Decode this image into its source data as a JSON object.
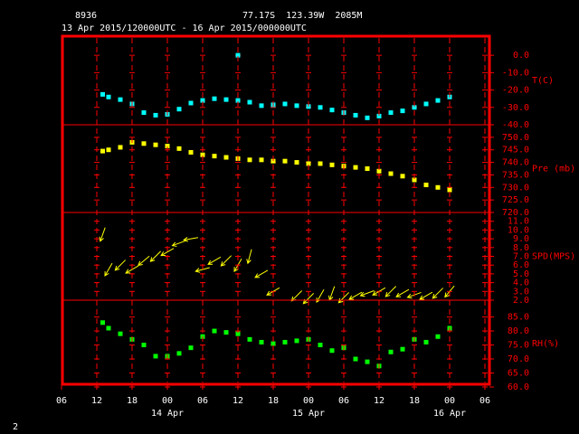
{
  "header": {
    "station": "8936",
    "location": "77.17S  123.39W  2085M",
    "period": "13 Apr 2015/120000UTC - 16 Apr 2015/000000UTC"
  },
  "footer": "2",
  "chart_data": [
    {
      "type": "scatter",
      "label": "T(C)",
      "color": "#00ffff",
      "xlim": [
        6,
        78
      ],
      "ylim": [
        -40,
        11
      ],
      "yticks": [
        {
          "value": 0,
          "label": "0.0"
        },
        {
          "value": -10,
          "label": "-10.0"
        },
        {
          "value": -20,
          "label": "-20.0"
        },
        {
          "value": -30,
          "label": "-30.0"
        },
        {
          "value": -40,
          "label": "-40.0"
        }
      ],
      "x": [
        13,
        14,
        16,
        18,
        20,
        22,
        24,
        26,
        28,
        30,
        32,
        34,
        36,
        38,
        40,
        42,
        44,
        46,
        48,
        50,
        52,
        54,
        56,
        58,
        60,
        62,
        64,
        66,
        68,
        70,
        72,
        36
      ],
      "values": [
        -22.5,
        -24,
        -25.5,
        -28,
        -33,
        -34.5,
        -34,
        -31,
        -27.5,
        -26,
        -25,
        -25.5,
        -26,
        -27,
        -29,
        -28.5,
        -28,
        -29,
        -29.5,
        -30,
        -31.5,
        -33,
        -34.5,
        -36,
        -35,
        -33,
        -32,
        -30,
        -28,
        -26,
        -24,
        0
      ]
    },
    {
      "type": "scatter",
      "label": "Pre (mb)",
      "color": "#ffff00",
      "xlim": [
        6,
        78
      ],
      "ylim": [
        720,
        755
      ],
      "yticks": [
        {
          "value": 750,
          "label": "750.0"
        },
        {
          "value": 745,
          "label": "745.0"
        },
        {
          "value": 740,
          "label": "740.0"
        },
        {
          "value": 735,
          "label": "735.0"
        },
        {
          "value": 730,
          "label": "730.0"
        },
        {
          "value": 725,
          "label": "725.0"
        },
        {
          "value": 720,
          "label": "720.0"
        }
      ],
      "x": [
        13,
        14,
        16,
        18,
        20,
        22,
        24,
        26,
        28,
        30,
        32,
        34,
        36,
        38,
        40,
        42,
        44,
        46,
        48,
        50,
        52,
        54,
        56,
        58,
        60,
        62,
        64,
        66,
        68,
        70,
        72
      ],
      "values": [
        744.5,
        745,
        746,
        748,
        747.5,
        747,
        746.5,
        745.5,
        744,
        743,
        742.5,
        742,
        741.5,
        741,
        741,
        740.5,
        740.5,
        740,
        739.5,
        739.5,
        739,
        738.5,
        738,
        737.5,
        736.5,
        735.5,
        734.5,
        733,
        731,
        730,
        729
      ]
    },
    {
      "type": "quiver",
      "label": "SPD(MPS)",
      "color": "#ffff00",
      "xlim": [
        6,
        78
      ],
      "ylim": [
        2,
        12
      ],
      "yticks": [
        {
          "value": 11,
          "label": "11.0"
        },
        {
          "value": 10,
          "label": "10.0"
        },
        {
          "value": 9,
          "label": "9.0"
        },
        {
          "value": 8,
          "label": "8.0"
        },
        {
          "value": 7,
          "label": "7.0"
        },
        {
          "value": 6,
          "label": "6.0"
        },
        {
          "value": 5,
          "label": "5.0"
        },
        {
          "value": 4,
          "label": "4.0"
        },
        {
          "value": 3,
          "label": "3.0"
        },
        {
          "value": 2,
          "label": "2.0"
        }
      ],
      "x": [
        13,
        14,
        16,
        18,
        20,
        22,
        24,
        26,
        28,
        30,
        32,
        34,
        36,
        38,
        40,
        42,
        46,
        48,
        50,
        52,
        54,
        56,
        58,
        60,
        62,
        64,
        66,
        68,
        70,
        72
      ],
      "values": [
        9.5,
        5.5,
        6,
        5.5,
        6.5,
        7,
        7.5,
        8.5,
        9,
        5.5,
        6.5,
        6.5,
        6,
        7,
        5,
        3,
        2.5,
        2.2,
        2.5,
        2.8,
        2.3,
        2.5,
        2.8,
        3,
        3,
        2.8,
        2.6,
        2.5,
        2.8,
        3
      ],
      "direction": [
        20,
        30,
        45,
        60,
        50,
        45,
        60,
        70,
        80,
        75,
        60,
        45,
        30,
        15,
        60,
        60,
        45,
        45,
        30,
        20,
        45,
        60,
        70,
        60,
        45,
        60,
        70,
        60,
        45,
        40
      ]
    },
    {
      "type": "scatter",
      "label": "RH(%)",
      "color": "#00ff00",
      "xlim": [
        6,
        78
      ],
      "ylim": [
        60,
        91
      ],
      "yticks": [
        {
          "value": 85,
          "label": "85.0"
        },
        {
          "value": 80,
          "label": "80.0"
        },
        {
          "value": 75,
          "label": "75.0"
        },
        {
          "value": 70,
          "label": "70.0"
        },
        {
          "value": 65,
          "label": "65.0"
        },
        {
          "value": 60,
          "label": "60.0"
        }
      ],
      "x": [
        13,
        14,
        16,
        18,
        20,
        22,
        24,
        26,
        28,
        30,
        32,
        34,
        36,
        38,
        40,
        42,
        44,
        46,
        48,
        50,
        52,
        54,
        56,
        58,
        60,
        62,
        64,
        66,
        68,
        70,
        72
      ],
      "values": [
        83,
        81,
        79,
        77,
        75,
        71,
        71,
        72,
        74,
        78,
        80,
        79.5,
        79,
        77,
        76,
        75.5,
        76,
        76.5,
        77,
        75,
        73,
        74,
        70,
        69,
        67.5,
        72.5,
        73.5,
        77,
        76,
        78,
        81
      ],
      "xticks": [
        {
          "value": 6,
          "label": "06"
        },
        {
          "value": 12,
          "label": "12"
        },
        {
          "value": 18,
          "label": "18"
        },
        {
          "value": 24,
          "label": "00"
        },
        {
          "value": 30,
          "label": "06"
        },
        {
          "value": 36,
          "label": "12"
        },
        {
          "value": 42,
          "label": "18"
        },
        {
          "value": 48,
          "label": "00"
        },
        {
          "value": 54,
          "label": "06"
        },
        {
          "value": 60,
          "label": "12"
        },
        {
          "value": 66,
          "label": "18"
        },
        {
          "value": 72,
          "label": "00"
        },
        {
          "value": 78,
          "label": "06"
        }
      ],
      "date_labels": [
        {
          "value": 24,
          "label": "14 Apr"
        },
        {
          "value": 48,
          "label": "15 Apr"
        },
        {
          "value": 72,
          "label": "16 Apr"
        }
      ]
    }
  ]
}
